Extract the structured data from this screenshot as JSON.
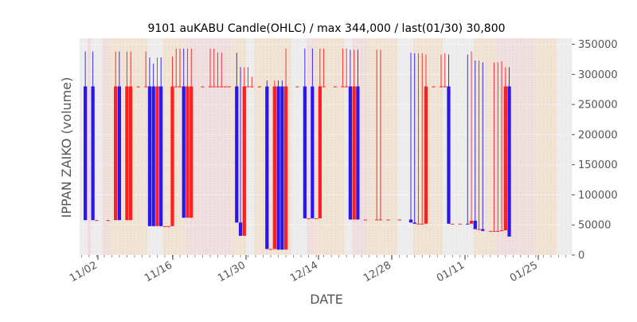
{
  "chart_data": {
    "type": "candlestick",
    "title": "9101 auKABU Candle(OHLC) / max 344,000 / last(01/30) 30,800",
    "xlabel": "DATE",
    "ylabel": "IPPAN ZAIKO (volume)",
    "ylim": [
      0,
      360000
    ],
    "y_ticks": [
      0,
      50000,
      100000,
      150000,
      200000,
      250000,
      300000,
      350000
    ],
    "y_tick_labels": [
      "0",
      "50000",
      "100000",
      "150000",
      "200000",
      "250000",
      "300000",
      "350000"
    ],
    "y_axis_side": "right",
    "x_tick_labels": [
      "11/02",
      "11/16",
      "11/30",
      "12/14",
      "12/28",
      "01/11",
      "01/25"
    ],
    "grid": true,
    "colors": {
      "up": "#ff1f1f",
      "down": "#2a17f0",
      "band_light": "#ececec",
      "band_pink": "#efdcdc",
      "band_peach": "#f0e2d2"
    }
  }
}
